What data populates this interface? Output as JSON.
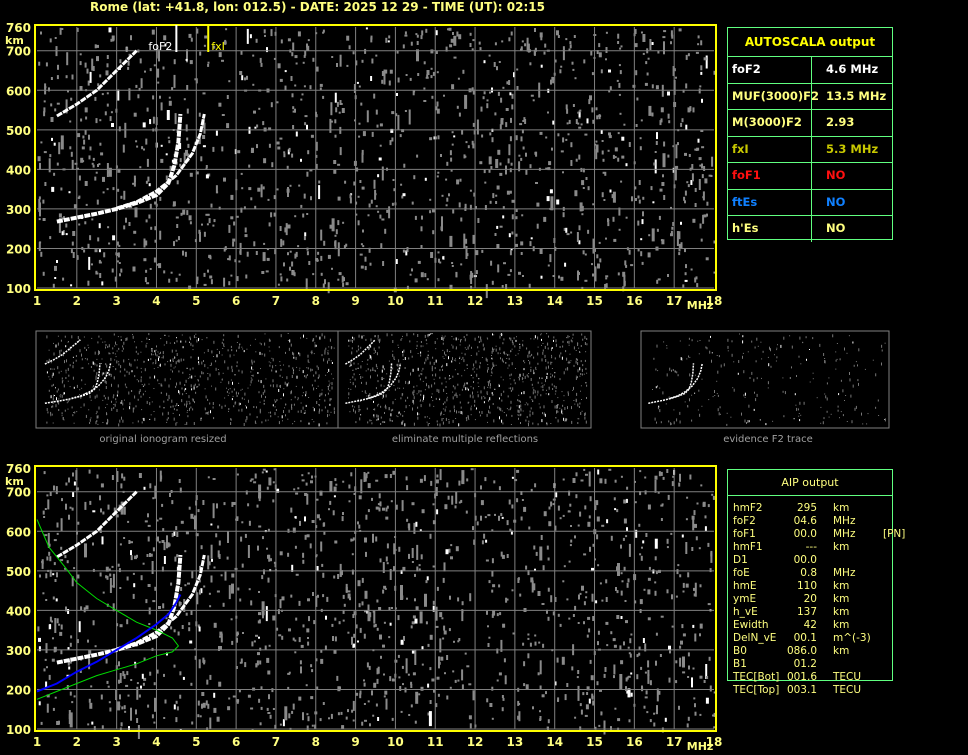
{
  "header": {
    "title": "Rome (lat: +41.8, lon: 012.5) - DATE: 2025 12 29 - TIME (UT): 02:15"
  },
  "colors": {
    "border": "#ffff00",
    "axis_text": "#ffff80",
    "grid": "#808080",
    "table_border": "#60ff80",
    "profile": "#00dd00",
    "fit": "#0000ff"
  },
  "autoscala": {
    "title": "AUTOSCALA output",
    "rows": [
      {
        "key": "foF2",
        "value": "4.6 MHz",
        "color": "#ffffff"
      },
      {
        "key": "MUF(3000)F2",
        "value": "13.5 MHz",
        "color": "#ffff80"
      },
      {
        "key": "M(3000)F2",
        "value": "2.93",
        "color": "#ffff80"
      },
      {
        "key": "fxI",
        "value": "5.3 MHz",
        "color": "#c8c800"
      },
      {
        "key": "foF1",
        "value": "NO",
        "color": "#ff1010"
      },
      {
        "key": "ftEs",
        "value": "NO",
        "color": "#1080ff"
      },
      {
        "key": "h'Es",
        "value": "NO",
        "color": "#ffff80"
      }
    ]
  },
  "aip": {
    "title": "AIP output",
    "rows": [
      {
        "key": "hmF2",
        "value": "295",
        "unit": "km",
        "extra": ""
      },
      {
        "key": "foF2",
        "value": "04.6",
        "unit": "MHz",
        "extra": ""
      },
      {
        "key": "foF1",
        "value": "00.0",
        "unit": "MHz",
        "extra": "[PN]"
      },
      {
        "key": "hmF1",
        "value": "---",
        "unit": "km",
        "extra": ""
      },
      {
        "key": "D1",
        "value": "00.0",
        "unit": "",
        "extra": ""
      },
      {
        "key": "foE",
        "value": "0.8",
        "unit": "MHz",
        "extra": ""
      },
      {
        "key": "hmE",
        "value": "110",
        "unit": "km",
        "extra": ""
      },
      {
        "key": "ymE",
        "value": "20",
        "unit": "km",
        "extra": ""
      },
      {
        "key": "h_vE",
        "value": "137",
        "unit": "km",
        "extra": ""
      },
      {
        "key": "Ewidth",
        "value": "42",
        "unit": "km",
        "extra": ""
      },
      {
        "key": "DelN_vE",
        "value": "00.1",
        "unit": "m^(-3)",
        "extra": ""
      },
      {
        "key": "B0",
        "value": "086.0",
        "unit": "km",
        "extra": ""
      },
      {
        "key": "B1",
        "value": "01.2",
        "unit": "",
        "extra": ""
      },
      {
        "key": "TEC[Bot]",
        "value": "001.6",
        "unit": "TECU",
        "extra": ""
      },
      {
        "key": "TEC[Top]",
        "value": "003.1",
        "unit": "TECU",
        "extra": ""
      }
    ]
  },
  "thumbnails": [
    {
      "caption": "original ionogram resized"
    },
    {
      "caption": "eliminate multiple reflections"
    },
    {
      "caption": "evidence F2 trace"
    }
  ],
  "chart_data": [
    {
      "type": "scatter",
      "xlabel": "MHz",
      "ylabel": "km",
      "xlim": [
        1,
        18
      ],
      "ylim": [
        100,
        760
      ],
      "x_ticks": [
        "1",
        "2",
        "3",
        "4",
        "5",
        "6",
        "7",
        "8",
        "9",
        "10",
        "11",
        "12",
        "13",
        "14",
        "15",
        "16",
        "17",
        "18"
      ],
      "y_ticks": [
        "100",
        "200",
        "300",
        "400",
        "500",
        "600",
        "700",
        "760"
      ],
      "grid": true,
      "markers": [
        {
          "label": "foF2",
          "x": 4.6
        },
        {
          "label": "fxI",
          "x": 5.3
        }
      ],
      "traces": [
        {
          "name": "O",
          "points": [
            [
              1.5,
              268
            ],
            [
              2,
              278
            ],
            [
              2.5,
              288
            ],
            [
              3,
              300
            ],
            [
              3.5,
              315
            ],
            [
              4,
              335
            ],
            [
              4.3,
              365
            ],
            [
              4.45,
              410
            ],
            [
              4.55,
              470
            ],
            [
              4.6,
              540
            ]
          ]
        },
        {
          "name": "X",
          "points": [
            [
              3,
              302
            ],
            [
              3.5,
              318
            ],
            [
              4,
              345
            ],
            [
              4.5,
              385
            ],
            [
              4.9,
              440
            ],
            [
              5.1,
              490
            ],
            [
              5.2,
              540
            ]
          ]
        },
        {
          "name": "2F",
          "points": [
            [
              1.5,
              535
            ],
            [
              2,
              565
            ],
            [
              2.5,
              600
            ],
            [
              3,
              650
            ],
            [
              3.5,
              700
            ]
          ]
        }
      ]
    },
    {
      "type": "line",
      "xlabel": "MHz",
      "ylabel": "km",
      "xlim": [
        1,
        18
      ],
      "ylim": [
        100,
        760
      ],
      "x_ticks": [
        "1",
        "2",
        "3",
        "4",
        "5",
        "6",
        "7",
        "8",
        "9",
        "10",
        "11",
        "12",
        "13",
        "14",
        "15",
        "16",
        "17",
        "18"
      ],
      "y_ticks": [
        "100",
        "200",
        "300",
        "400",
        "500",
        "600",
        "700",
        "760"
      ],
      "grid": true,
      "fit": [
        [
          1,
          195
        ],
        [
          1.5,
          215
        ],
        [
          2,
          245
        ],
        [
          2.5,
          270
        ],
        [
          3,
          300
        ],
        [
          3.5,
          330
        ],
        [
          4,
          365
        ],
        [
          4.3,
          390
        ],
        [
          4.5,
          420
        ],
        [
          4.6,
          440
        ]
      ],
      "profile": [
        [
          1,
          630
        ],
        [
          1.3,
          560
        ],
        [
          1.7,
          510
        ],
        [
          2,
          470
        ],
        [
          2.5,
          430
        ],
        [
          3,
          400
        ],
        [
          3.5,
          370
        ],
        [
          4,
          350
        ],
        [
          4.4,
          330
        ],
        [
          4.55,
          310
        ],
        [
          4.4,
          295
        ],
        [
          4,
          285
        ],
        [
          3.5,
          265
        ],
        [
          3,
          250
        ],
        [
          2.5,
          235
        ],
        [
          2,
          215
        ],
        [
          1.5,
          195
        ],
        [
          1,
          175
        ]
      ]
    }
  ]
}
